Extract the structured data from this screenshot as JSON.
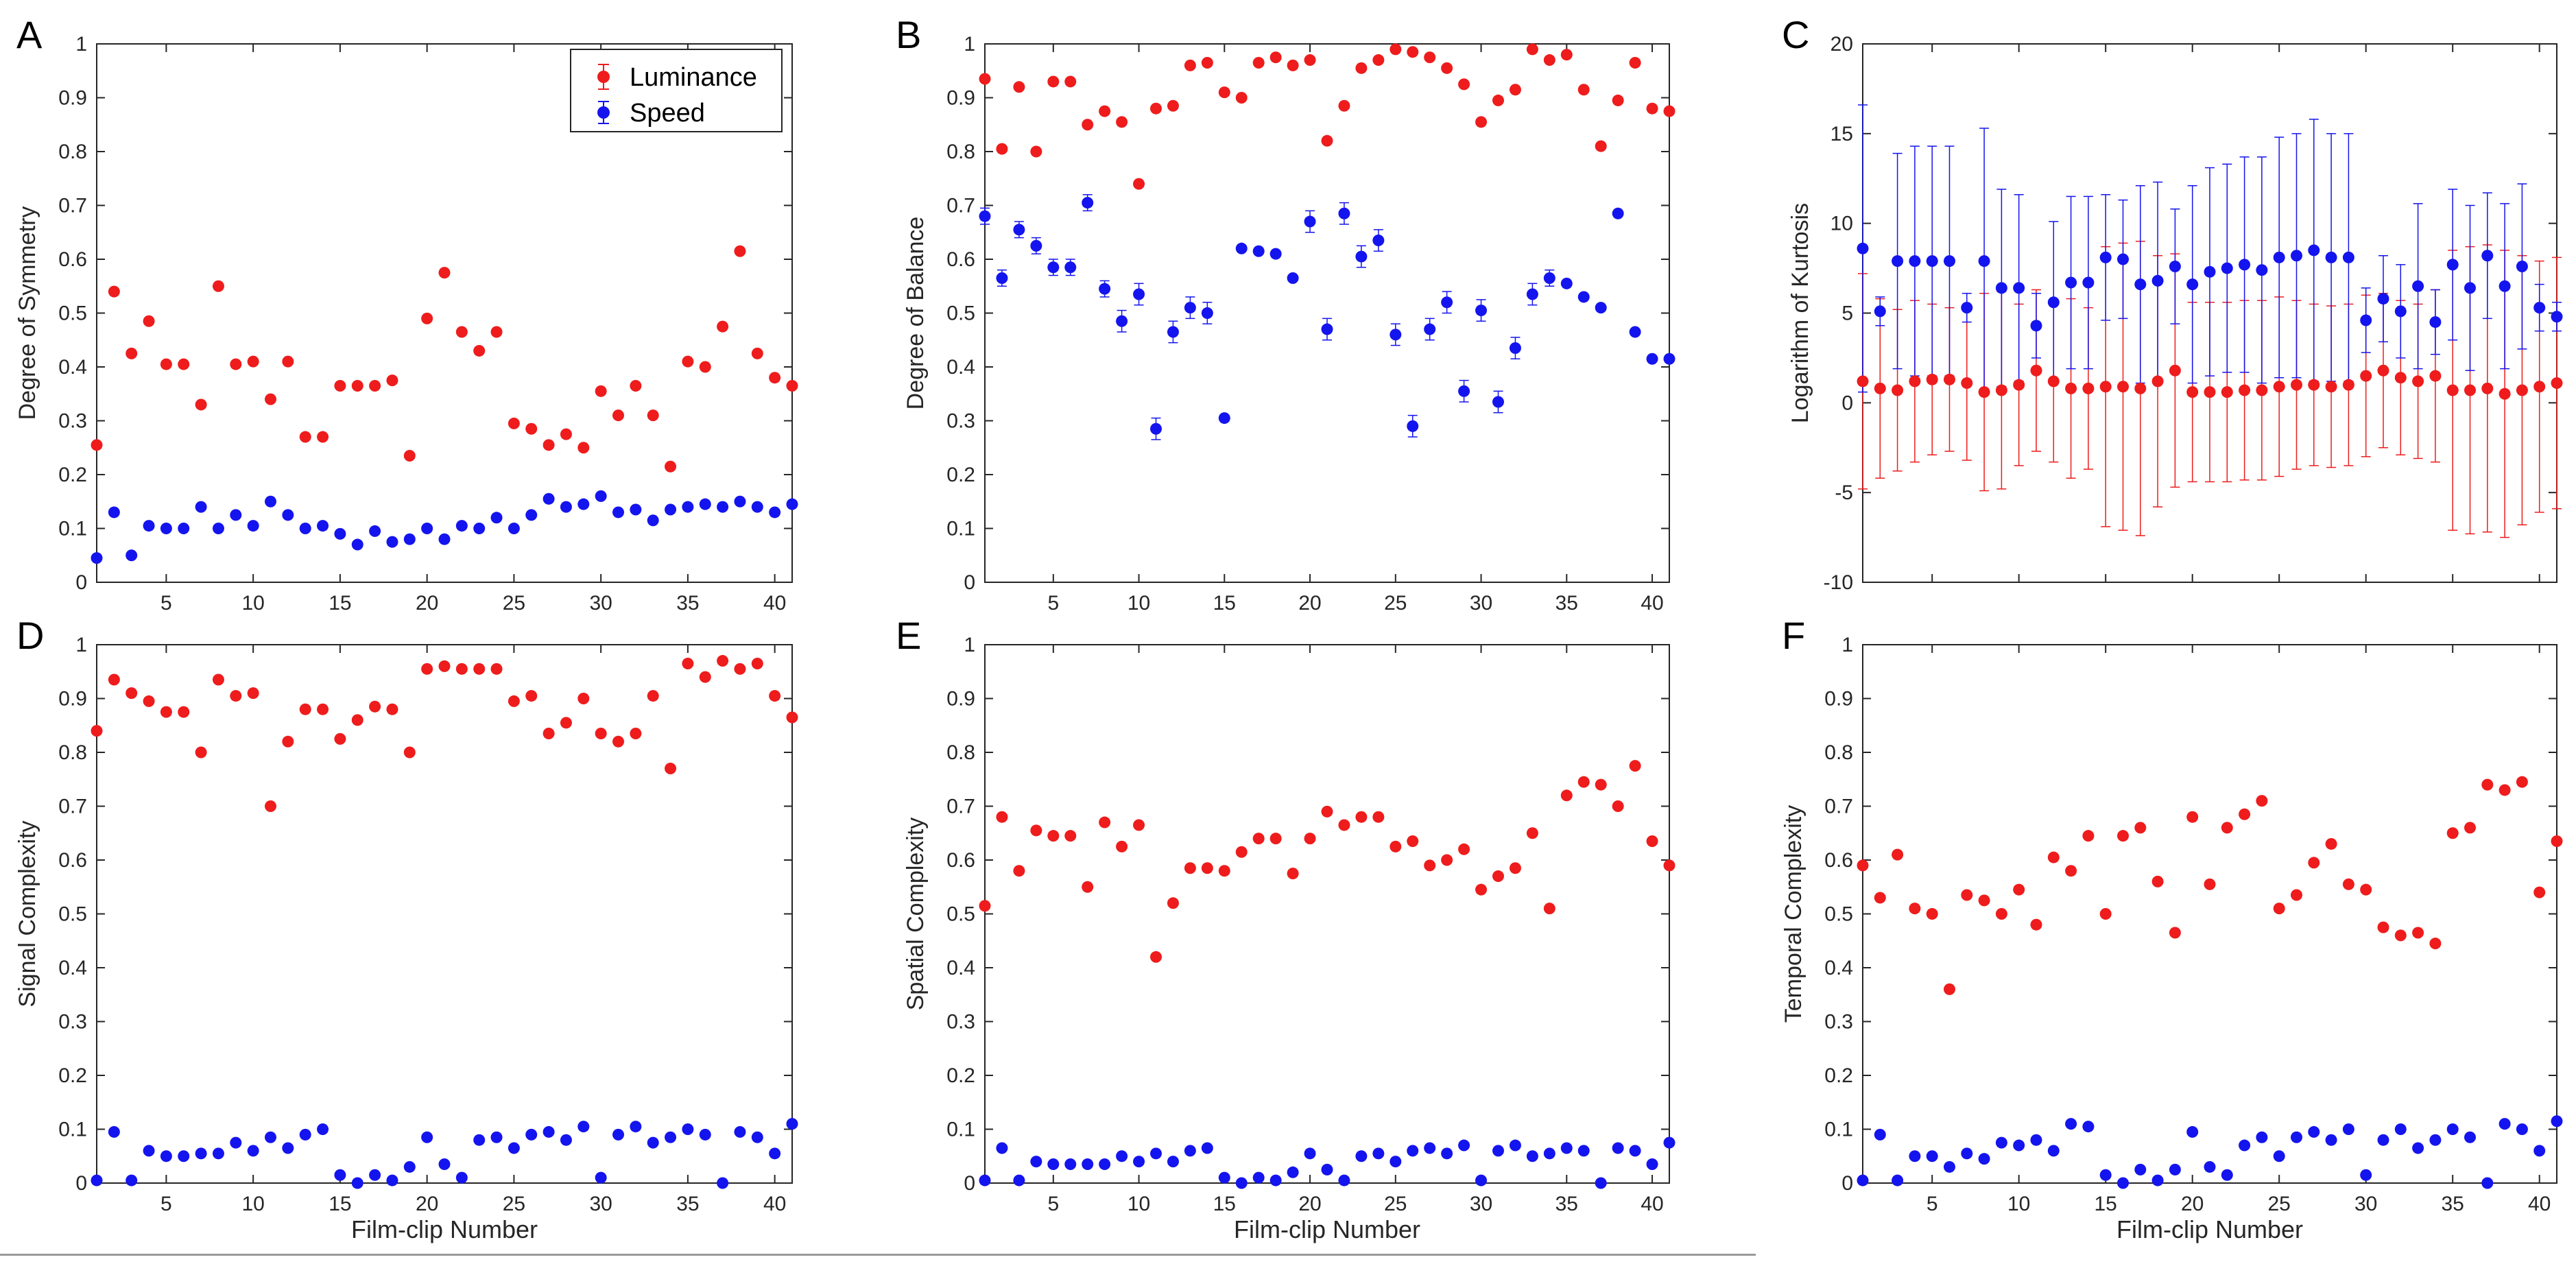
{
  "colors": {
    "luminance": "#ee1c1c",
    "speed": "#1414ee",
    "axis": "#262626"
  },
  "xlabel": "Film-clip Number",
  "legend": {
    "luminance": "Luminance",
    "speed": "Speed"
  },
  "chart_data": [
    {
      "type": "scatter",
      "panel": "A",
      "ylabel": "Degree of Symmetry",
      "xlim": [
        1,
        41
      ],
      "ylim": [
        0,
        1
      ],
      "yticks": [
        "0",
        "0.1",
        "0.2",
        "0.3",
        "0.4",
        "0.5",
        "0.6",
        "0.7",
        "0.8",
        "0.9",
        "1"
      ],
      "xticks": [
        "5",
        "10",
        "15",
        "20",
        "25",
        "30",
        "35",
        "40"
      ],
      "legend_position": "top-right",
      "series": [
        {
          "name": "Luminance",
          "y": [
            0.255,
            0.54,
            0.425,
            0.485,
            0.405,
            0.405,
            0.33,
            0.55,
            0.405,
            0.41,
            0.34,
            0.41,
            0.27,
            0.27,
            0.365,
            0.365,
            0.365,
            0.375,
            0.235,
            0.49,
            0.575,
            0.465,
            0.43,
            0.465,
            0.295,
            0.285,
            0.255,
            0.275,
            0.25,
            0.355,
            0.31,
            0.365,
            0.31,
            0.215,
            0.41,
            0.4,
            0.475,
            0.615,
            0.425,
            0.38,
            0.365
          ]
        },
        {
          "name": "Speed",
          "y": [
            0.045,
            0.13,
            0.05,
            0.105,
            0.1,
            0.1,
            0.14,
            0.1,
            0.125,
            0.105,
            0.15,
            0.125,
            0.1,
            0.105,
            0.09,
            0.07,
            0.095,
            0.075,
            0.08,
            0.1,
            0.08,
            0.105,
            0.1,
            0.12,
            0.1,
            0.125,
            0.155,
            0.14,
            0.145,
            0.16,
            0.13,
            0.135,
            0.115,
            0.135,
            0.14,
            0.145,
            0.14,
            0.15,
            0.14,
            0.13,
            0.145
          ]
        }
      ]
    },
    {
      "type": "scatter",
      "panel": "B",
      "ylabel": "Degree of Balance",
      "xlim": [
        1,
        41
      ],
      "ylim": [
        0,
        1
      ],
      "yticks": [
        "0",
        "0.1",
        "0.2",
        "0.3",
        "0.4",
        "0.5",
        "0.6",
        "0.7",
        "0.8",
        "0.9",
        "1"
      ],
      "xticks": [
        "5",
        "10",
        "15",
        "20",
        "25",
        "30",
        "35",
        "40"
      ],
      "series": [
        {
          "name": "Luminance",
          "y": [
            0.935,
            0.805,
            0.92,
            0.8,
            0.93,
            0.93,
            0.85,
            0.875,
            0.855,
            0.74,
            0.88,
            0.885,
            0.96,
            0.965,
            0.91,
            0.9,
            0.965,
            0.975,
            0.96,
            0.97,
            0.82,
            0.885,
            0.955,
            0.97,
            0.99,
            0.985,
            0.975,
            0.955,
            0.925,
            0.855,
            0.895,
            0.915,
            0.99,
            0.97,
            0.98,
            0.915,
            0.81,
            0.895,
            0.965,
            0.88,
            0.875
          ]
        },
        {
          "name": "Speed",
          "y": [
            0.68,
            0.565,
            0.655,
            0.625,
            0.585,
            0.585,
            0.705,
            0.545,
            0.485,
            0.535,
            0.285,
            0.465,
            0.51,
            0.5,
            0.305,
            0.62,
            0.615,
            0.61,
            0.565,
            0.67,
            0.47,
            0.685,
            0.605,
            0.635,
            0.46,
            0.29,
            0.47,
            0.52,
            0.355,
            0.505,
            0.335,
            0.435,
            0.535,
            0.565,
            0.555,
            0.53,
            0.51,
            0.685,
            0.465,
            0.415,
            0.415
          ]
        },
        {
          "name": "Speed error",
          "err": [
            0.015,
            0.015,
            0.015,
            0.015,
            0.015,
            0.015,
            0.015,
            0.015,
            0.02,
            0.02,
            0.02,
            0.02,
            0.02,
            0.02,
            0,
            0,
            0,
            0,
            0,
            0.02,
            0.02,
            0.02,
            0.02,
            0.02,
            0.02,
            0.02,
            0.02,
            0.02,
            0.02,
            0.02,
            0.02,
            0.02,
            0.02,
            0.015,
            0,
            0,
            0,
            0,
            0,
            0,
            0
          ]
        }
      ]
    },
    {
      "type": "scatter",
      "panel": "C",
      "ylabel": "Logarithm of Kurtosis",
      "xlim": [
        1,
        41
      ],
      "ylim": [
        -10,
        20
      ],
      "yticks": [
        "-10",
        "-5",
        "0",
        "5",
        "10",
        "15",
        "20"
      ],
      "xticks": [],
      "series": [
        {
          "name": "Luminance",
          "y": [
            1.2,
            0.8,
            0.7,
            1.2,
            1.3,
            1.3,
            1.1,
            0.6,
            0.7,
            1.0,
            1.8,
            1.2,
            0.8,
            0.8,
            0.9,
            0.9,
            0.8,
            1.2,
            1.8,
            0.6,
            0.6,
            0.6,
            0.7,
            0.7,
            0.9,
            1.0,
            1.0,
            0.9,
            1.0,
            1.5,
            1.8,
            1.4,
            1.2,
            1.5,
            0.7,
            0.7,
            0.8,
            0.5,
            0.7,
            0.9,
            1.1
          ]
        },
        {
          "name": "Luminance error",
          "err": [
            6,
            5,
            4.5,
            4.5,
            4.2,
            4,
            4.3,
            5.5,
            5.5,
            4.5,
            4.5,
            4.5,
            5,
            4.5,
            7.8,
            8,
            8.2,
            7,
            6.5,
            5,
            5,
            5,
            5,
            5,
            5,
            4.7,
            4.5,
            4.5,
            4.5,
            4.5,
            4.3,
            4.3,
            4.3,
            4.8,
            7.8,
            8,
            8,
            8,
            7.5,
            7,
            7
          ]
        },
        {
          "name": "Speed",
          "y": [
            8.6,
            5.1,
            7.9,
            7.9,
            7.9,
            7.9,
            5.3,
            7.9,
            6.4,
            6.4,
            4.3,
            5.6,
            6.7,
            6.7,
            8.1,
            8.0,
            6.6,
            6.8,
            7.6,
            6.6,
            7.3,
            7.5,
            7.7,
            7.4,
            8.1,
            8.2,
            8.5,
            8.1,
            8.1,
            4.6,
            5.8,
            5.1,
            6.5,
            4.5,
            7.7,
            6.4,
            8.2,
            6.5,
            7.6,
            5.3,
            4.8
          ]
        },
        {
          "name": "Speed error",
          "err": [
            8,
            0.8,
            6,
            6.4,
            6.4,
            6.4,
            0.8,
            7.4,
            5.5,
            5.2,
            1.8,
            4.5,
            4.8,
            4.8,
            3.5,
            3.3,
            5.5,
            5.5,
            3.2,
            5.5,
            5.8,
            5.8,
            6,
            6.3,
            6.7,
            6.8,
            7.3,
            6.9,
            6.9,
            1.8,
            2.4,
            2.6,
            4.6,
            1.8,
            4.2,
            4.6,
            3.5,
            4.6,
            4.6,
            1.3,
            0.8
          ]
        }
      ]
    },
    {
      "type": "scatter",
      "panel": "D",
      "ylabel": "Signal Complexity",
      "xlim": [
        1,
        41
      ],
      "ylim": [
        0,
        1
      ],
      "yticks": [
        "0",
        "0.1",
        "0.2",
        "0.3",
        "0.4",
        "0.5",
        "0.6",
        "0.7",
        "0.8",
        "0.9",
        "1"
      ],
      "xticks": [
        "5",
        "10",
        "15",
        "20",
        "25",
        "30",
        "35",
        "40"
      ],
      "series": [
        {
          "name": "Luminance",
          "y": [
            0.84,
            0.935,
            0.91,
            0.895,
            0.875,
            0.875,
            0.8,
            0.935,
            0.905,
            0.91,
            0.7,
            0.82,
            0.88,
            0.88,
            0.825,
            0.86,
            0.885,
            0.88,
            0.8,
            0.955,
            0.96,
            0.955,
            0.955,
            0.955,
            0.895,
            0.905,
            0.835,
            0.855,
            0.9,
            0.835,
            0.82,
            0.835,
            0.905,
            0.77,
            0.965,
            0.94,
            0.97,
            0.955,
            0.965,
            0.905,
            0.865
          ]
        },
        {
          "name": "Speed",
          "y": [
            0.005,
            0.095,
            0.005,
            0.06,
            0.05,
            0.05,
            0.055,
            0.055,
            0.075,
            0.06,
            0.085,
            0.065,
            0.09,
            0.1,
            0.015,
            0.0,
            0.015,
            0.005,
            0.03,
            0.085,
            0.035,
            0.01,
            0.08,
            0.085,
            0.065,
            0.09,
            0.095,
            0.08,
            0.105,
            0.01,
            0.09,
            0.105,
            0.075,
            0.085,
            0.1,
            0.09,
            0.0,
            0.095,
            0.085,
            0.055,
            0.11
          ]
        }
      ]
    },
    {
      "type": "scatter",
      "panel": "E",
      "ylabel": "Spatial Complexity",
      "xlim": [
        1,
        41
      ],
      "ylim": [
        0,
        1
      ],
      "yticks": [
        "0",
        "0.1",
        "0.2",
        "0.3",
        "0.4",
        "0.5",
        "0.6",
        "0.7",
        "0.8",
        "0.9",
        "1"
      ],
      "xlabel_visible": true,
      "xticks": [
        "5",
        "10",
        "15",
        "20",
        "25",
        "30",
        "35",
        "40"
      ],
      "series": [
        {
          "name": "Luminance",
          "y": [
            0.515,
            0.68,
            0.58,
            0.655,
            0.645,
            0.645,
            0.55,
            0.67,
            0.625,
            0.665,
            0.42,
            0.52,
            0.585,
            0.585,
            0.58,
            0.615,
            0.64,
            0.64,
            0.575,
            0.64,
            0.69,
            0.665,
            0.68,
            0.68,
            0.625,
            0.635,
            0.59,
            0.6,
            0.62,
            0.545,
            0.57,
            0.585,
            0.65,
            0.51,
            0.72,
            0.745,
            0.74,
            0.7,
            0.775,
            0.635,
            0.59
          ]
        },
        {
          "name": "Speed",
          "y": [
            0.005,
            0.065,
            0.005,
            0.04,
            0.035,
            0.035,
            0.035,
            0.035,
            0.05,
            0.04,
            0.055,
            0.04,
            0.06,
            0.065,
            0.01,
            0.0,
            0.01,
            0.005,
            0.02,
            0.055,
            0.025,
            0.005,
            0.05,
            0.055,
            0.04,
            0.06,
            0.065,
            0.055,
            0.07,
            0.005,
            0.06,
            0.07,
            0.05,
            0.055,
            0.065,
            0.06,
            0.0,
            0.065,
            0.06,
            0.035,
            0.075
          ]
        }
      ]
    },
    {
      "type": "scatter",
      "panel": "F",
      "ylabel": "Temporal Complexity",
      "xlim": [
        1,
        41
      ],
      "ylim": [
        0,
        1
      ],
      "yticks": [
        "0",
        "0.1",
        "0.2",
        "0.3",
        "0.4",
        "0.5",
        "0.6",
        "0.7",
        "0.8",
        "0.9",
        "1"
      ],
      "xticks": [
        "5",
        "10",
        "15",
        "20",
        "25",
        "30",
        "35",
        "40"
      ],
      "series": [
        {
          "name": "Luminance",
          "y": [
            0.59,
            0.53,
            0.61,
            0.51,
            0.5,
            0.36,
            0.535,
            0.525,
            0.5,
            0.545,
            0.48,
            0.605,
            0.58,
            0.645,
            0.5,
            0.645,
            0.66,
            0.56,
            0.465,
            0.68,
            0.555,
            0.66,
            0.685,
            0.71,
            0.51,
            0.535,
            0.595,
            0.63,
            0.555,
            0.545,
            0.475,
            0.46,
            0.465,
            0.445,
            0.65,
            0.66,
            0.74,
            0.73,
            0.745,
            0.54,
            0.635
          ]
        },
        {
          "name": "Speed",
          "y": [
            0.005,
            0.09,
            0.005,
            0.05,
            0.05,
            0.03,
            0.055,
            0.045,
            0.075,
            0.07,
            0.08,
            0.06,
            0.11,
            0.105,
            0.015,
            0.0,
            0.025,
            0.005,
            0.025,
            0.095,
            0.03,
            0.015,
            0.07,
            0.085,
            0.05,
            0.085,
            0.095,
            0.08,
            0.1,
            0.015,
            0.08,
            0.1,
            0.065,
            0.08,
            0.1,
            0.085,
            0.0,
            0.11,
            0.1,
            0.06,
            0.115
          ]
        }
      ]
    }
  ]
}
